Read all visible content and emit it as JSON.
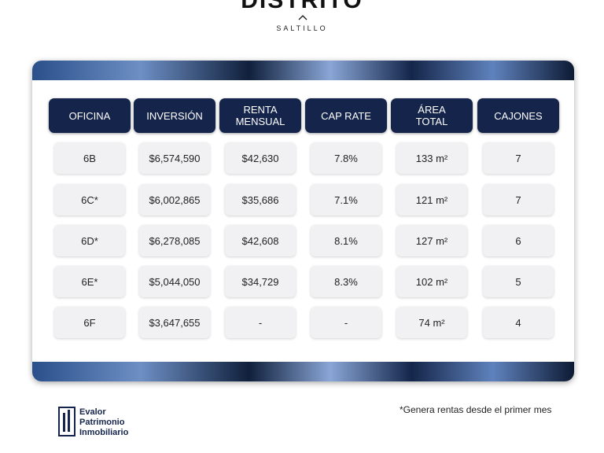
{
  "header": {
    "title": "DISTRITO",
    "subtitle": "SALTILLO"
  },
  "table": {
    "headers": [
      "OFICINA",
      "INVERSIÓN",
      "RENTA MENSUAL",
      "CAP RATE",
      "ÁREA TOTAL",
      "CAJONES"
    ],
    "rows": [
      [
        "6B",
        "$6,574,590",
        "$42,630",
        "7.8%",
        "133 m²",
        "7"
      ],
      [
        "6C*",
        "$6,002,865",
        "$35,686",
        "7.1%",
        "121 m²",
        "7"
      ],
      [
        "6D*",
        "$6,278,085",
        "$42,608",
        "8.1%",
        "127 m²",
        "6"
      ],
      [
        "6E*",
        "$5,044,050",
        "$34,729",
        "8.3%",
        "102 m²",
        "5"
      ],
      [
        "6F",
        "$3,647,655",
        "-",
        "-",
        "74 m²",
        "4"
      ]
    ]
  },
  "footer": {
    "note": "*Genera rentas desde el primer mes",
    "logo": [
      "Evalor",
      "Patrimonio",
      "Inmobiliario"
    ]
  }
}
